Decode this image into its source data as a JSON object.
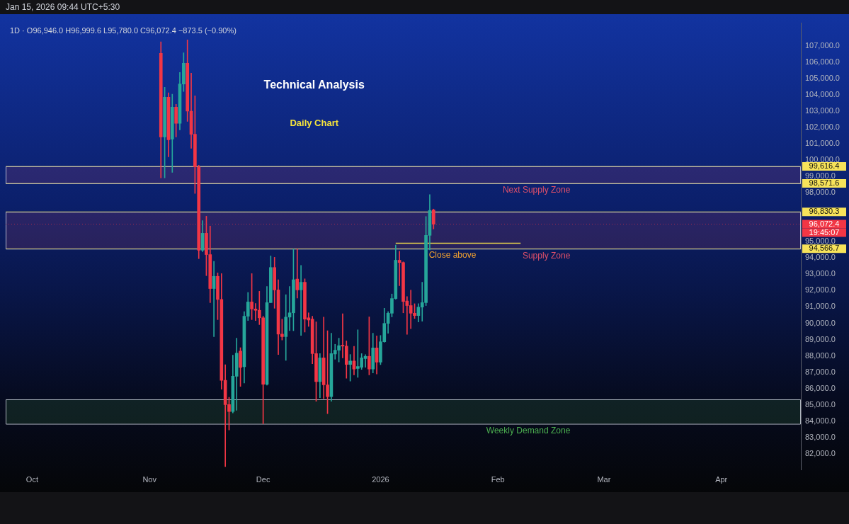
{
  "chart_data": {
    "type": "candlestick",
    "title": "Technical Analysis",
    "subtitle": "Daily Chart",
    "x": [
      "2025-11-04",
      "2025-11-05",
      "2025-11-06",
      "2025-11-07",
      "2025-11-08",
      "2025-11-09",
      "2025-11-10",
      "2025-11-11",
      "2025-11-12",
      "2025-11-13",
      "2025-11-14",
      "2025-11-15",
      "2025-11-16",
      "2025-11-17",
      "2025-11-18",
      "2025-11-19",
      "2025-11-20",
      "2025-11-21",
      "2025-11-22",
      "2025-11-23",
      "2025-11-24",
      "2025-11-25",
      "2025-11-26",
      "2025-11-27",
      "2025-11-28",
      "2025-11-29",
      "2025-11-30",
      "2025-12-01",
      "2025-12-02",
      "2025-12-03",
      "2025-12-04",
      "2025-12-05",
      "2025-12-06",
      "2025-12-07",
      "2025-12-08",
      "2025-12-09",
      "2025-12-10",
      "2025-12-11",
      "2025-12-12",
      "2025-12-13",
      "2025-12-14",
      "2025-12-15",
      "2025-12-16",
      "2025-12-17",
      "2025-12-18",
      "2025-12-19",
      "2025-12-20",
      "2025-12-21",
      "2025-12-22",
      "2025-12-23",
      "2025-12-24",
      "2025-12-25",
      "2025-12-26",
      "2025-12-27",
      "2025-12-28",
      "2025-12-29",
      "2025-12-30",
      "2025-12-31",
      "2026-01-01",
      "2026-01-02",
      "2026-01-03",
      "2026-01-04",
      "2026-01-05",
      "2026-01-06",
      "2026-01-07",
      "2026-01-08",
      "2026-01-09",
      "2026-01-10",
      "2026-01-11",
      "2026-01-12",
      "2026-01-13",
      "2026-01-14",
      "2026-01-15"
    ],
    "ohlc": [
      [
        106542,
        107250,
        98917,
        101417
      ],
      [
        101417,
        104458,
        98917,
        103850
      ],
      [
        103850,
        104125,
        100208,
        101250
      ],
      [
        101292,
        104042,
        99250,
        103250
      ],
      [
        103250,
        103417,
        101417,
        102250
      ],
      [
        102250,
        105375,
        101854,
        104667
      ],
      [
        104667,
        106583,
        104208,
        105933
      ],
      [
        105933,
        107375,
        102375,
        103000
      ],
      [
        103000,
        105333,
        100725,
        101583
      ],
      [
        101583,
        103938,
        97958,
        99583
      ],
      [
        99583,
        99683,
        93958,
        94475
      ],
      [
        94475,
        96292,
        94388,
        95517
      ],
      [
        95517,
        96558,
        92917,
        94208
      ],
      [
        94208,
        95958,
        91263,
        92125
      ],
      [
        92125,
        93792,
        89179,
        92875
      ],
      [
        92875,
        93083,
        90221,
        91458
      ],
      [
        91458,
        93042,
        85958,
        86500
      ],
      [
        86500,
        87458,
        81208,
        85013
      ],
      [
        85013,
        85458,
        83458,
        84583
      ],
      [
        84583,
        88042,
        84500,
        86750
      ],
      [
        86750,
        89083,
        84667,
        88167
      ],
      [
        88292,
        88500,
        86125,
        87292
      ],
      [
        87333,
        90708,
        86333,
        90429
      ],
      [
        90429,
        91888,
        90167,
        91304
      ],
      [
        91304,
        93042,
        90221,
        90875
      ],
      [
        90875,
        91208,
        90167,
        90792
      ],
      [
        90792,
        91958,
        89917,
        90333
      ],
      [
        90333,
        90429,
        83833,
        86263
      ],
      [
        86263,
        92250,
        86208,
        91263
      ],
      [
        91263,
        94125,
        91263,
        93417
      ],
      [
        93417,
        94042,
        90917,
        92042
      ],
      [
        92042,
        92667,
        88083,
        89333
      ],
      [
        89333,
        90250,
        88971,
        89179
      ],
      [
        89179,
        91750,
        87721,
        90375
      ],
      [
        90375,
        92250,
        89542,
        90638
      ],
      [
        90638,
        94542,
        89542,
        92667
      ],
      [
        92708,
        94542,
        91542,
        92042
      ],
      [
        92042,
        93542,
        89250,
        92513
      ],
      [
        92513,
        92721,
        89458,
        90250
      ],
      [
        90333,
        90638,
        89804,
        90196
      ],
      [
        90250,
        90429,
        87513,
        88138
      ],
      [
        88138,
        90083,
        85221,
        86417
      ],
      [
        86417,
        88138,
        85429,
        87875
      ],
      [
        87875,
        90375,
        85375,
        86221
      ],
      [
        86221,
        89542,
        84458,
        85500
      ],
      [
        85500,
        89388,
        85221,
        88138
      ],
      [
        88113,
        88708,
        87792,
        88346
      ],
      [
        88346,
        89083,
        87625,
        88625
      ],
      [
        88654,
        90583,
        87875,
        88596
      ],
      [
        88596,
        88917,
        86625,
        87471
      ],
      [
        87471,
        88083,
        86458,
        87679
      ],
      [
        87679,
        88583,
        86833,
        87196
      ],
      [
        87221,
        89596,
        86679,
        87346
      ],
      [
        87304,
        88138,
        87167,
        87875
      ],
      [
        87833,
        88071,
        87304,
        87971
      ],
      [
        87971,
        90388,
        86833,
        87196
      ],
      [
        87196,
        89388,
        86958,
        88488
      ],
      [
        88488,
        89221,
        86888,
        87613
      ],
      [
        87613,
        89250,
        87458,
        88863
      ],
      [
        88863,
        90917,
        88833,
        89988
      ],
      [
        89988,
        90708,
        89388,
        90613
      ],
      [
        90613,
        91792,
        90388,
        91513
      ],
      [
        91513,
        94792,
        91471,
        93863
      ],
      [
        93863,
        94417,
        92304,
        93721
      ],
      [
        93721,
        93763,
        90638,
        91333
      ],
      [
        91363,
        91638,
        89321,
        91083
      ],
      [
        91083,
        92029,
        89667,
        90613
      ],
      [
        90613,
        91196,
        90292,
        90471
      ],
      [
        90471,
        91196,
        90083,
        90988
      ],
      [
        90988,
        92513,
        90125,
        91263
      ],
      [
        91263,
        96542,
        91083,
        95388
      ],
      [
        95388,
        97888,
        94500,
        96917
      ],
      [
        96946.0,
        96999.6,
        95780.0,
        96072.4
      ]
    ],
    "colors": [
      "#f23645",
      "#26a69a",
      "#f23645",
      "#26a69a",
      "#f23645",
      "#26a69a",
      "#26a69a",
      "#f23645",
      "#f23645",
      "#f23645",
      "#f23645",
      "#26a69a",
      "#f23645",
      "#f23645",
      "#26a69a",
      "#f23645",
      "#f23645",
      "#f23645",
      "#f23645",
      "#26a69a",
      "#26a69a",
      "#f23645",
      "#26a69a",
      "#26a69a",
      "#f23645",
      "#f23645",
      "#f23645",
      "#f23645",
      "#26a69a",
      "#26a69a",
      "#f23645",
      "#f23645",
      "#f23645",
      "#26a69a",
      "#26a69a",
      "#26a69a",
      "#f23645",
      "#26a69a",
      "#f23645",
      "#f23645",
      "#f23645",
      "#f23645",
      "#26a69a",
      "#f23645",
      "#f23645",
      "#26a69a",
      "#26a69a",
      "#26a69a",
      "#f23645",
      "#f23645",
      "#26a69a",
      "#f23645",
      "#26a69a",
      "#26a69a",
      "#26a69a",
      "#f23645",
      "#26a69a",
      "#f23645",
      "#26a69a",
      "#26a69a",
      "#26a69a",
      "#26a69a",
      "#26a69a",
      "#f23645",
      "#f23645",
      "#f23645",
      "#f23645",
      "#f23645",
      "#26a69a",
      "#26a69a",
      "#26a69a",
      "#26a69a",
      "#f23645"
    ],
    "series": [
      {
        "type": "line",
        "color": "#e8d44d",
        "x": [
          "2026-01-05",
          "2026-02-07"
        ],
        "values": [
          94900,
          94900
        ]
      }
    ],
    "xlim": [
      "2025-09-24",
      "2026-04-22"
    ],
    "xticks": [
      {
        "value": "2025-10-01",
        "label": "Oct"
      },
      {
        "value": "2025-11-01",
        "label": "Nov"
      },
      {
        "value": "2025-12-01",
        "label": "Dec"
      },
      {
        "value": "2026-01-01",
        "label": "2026"
      },
      {
        "value": "2026-02-01",
        "label": "Feb"
      },
      {
        "value": "2026-03-01",
        "label": "Mar"
      },
      {
        "value": "2026-04-01",
        "label": "Apr"
      }
    ],
    "ylim": [
      81000,
      108400
    ],
    "yticks": [
      {
        "value": 82000,
        "label": "82,000.0"
      },
      {
        "value": 83000,
        "label": "83,000.0"
      },
      {
        "value": 84000,
        "label": "84,000.0"
      },
      {
        "value": 85000,
        "label": "85,000.0"
      },
      {
        "value": 86000,
        "label": "86,000.0"
      },
      {
        "value": 87000,
        "label": "87,000.0"
      },
      {
        "value": 88000,
        "label": "88,000.0"
      },
      {
        "value": 89000,
        "label": "89,000.0"
      },
      {
        "value": 90000,
        "label": "90,000.0"
      },
      {
        "value": 91000,
        "label": "91,000.0"
      },
      {
        "value": 92000,
        "label": "92,000.0"
      },
      {
        "value": 93000,
        "label": "93,000.0"
      },
      {
        "value": 94000,
        "label": "94,000.0"
      },
      {
        "value": 95000,
        "label": "95,000.0"
      },
      {
        "value": 98000,
        "label": "98,000.0"
      },
      {
        "value": 99000,
        "label": "99,000.0"
      },
      {
        "value": 100000,
        "label": "100,000.0"
      },
      {
        "value": 101000,
        "label": "101,000.0"
      },
      {
        "value": 102000,
        "label": "102,000.0"
      },
      {
        "value": 103000,
        "label": "103,000.0"
      },
      {
        "value": 104000,
        "label": "104,000.0"
      },
      {
        "value": 105000,
        "label": "105,000.0"
      },
      {
        "value": 106000,
        "label": "106,000.0"
      },
      {
        "value": 107000,
        "label": "107,000.0"
      }
    ],
    "bands": [
      {
        "axis": "y",
        "from": 98571.6,
        "to": 99616.4,
        "label": "Next Supply Zone",
        "color": "#e0506a"
      },
      {
        "axis": "y",
        "from": 94566.7,
        "to": 96830.3,
        "label": "Supply Zone",
        "color": "#e0506a"
      },
      {
        "axis": "y",
        "from": 83833,
        "to": 85333,
        "label": "Weekly Demand Zone",
        "color": "#4caf50"
      }
    ],
    "ref_lines": [
      {
        "axis": "y",
        "value": 99616.4,
        "label": "99,616.4",
        "color": "#f7e35a"
      },
      {
        "axis": "y",
        "value": 98571.6,
        "label": "98,571.6",
        "color": "#f7e35a"
      },
      {
        "axis": "y",
        "value": 96830.3,
        "label": "96,830.3",
        "color": "#f7e35a"
      },
      {
        "axis": "y",
        "value": 96072.4,
        "label": "96,072.4",
        "color": "#f23645",
        "line_style": "dotted"
      },
      {
        "axis": "y",
        "value": 94566.7,
        "label": "94,566.7",
        "color": "#f7e35a"
      }
    ],
    "annotations": [
      "Jan 15, 2026 09:44 UTC+5:30",
      "1D · O96,946.0 H96,999.6 L95,780.0 C96,072.4 −873.5 (−0.90%)",
      "19:45:07",
      {
        "text": "Close above",
        "x": "2026-01-20",
        "y": 94400
      }
    ],
    "grid": false,
    "legend": false
  }
}
